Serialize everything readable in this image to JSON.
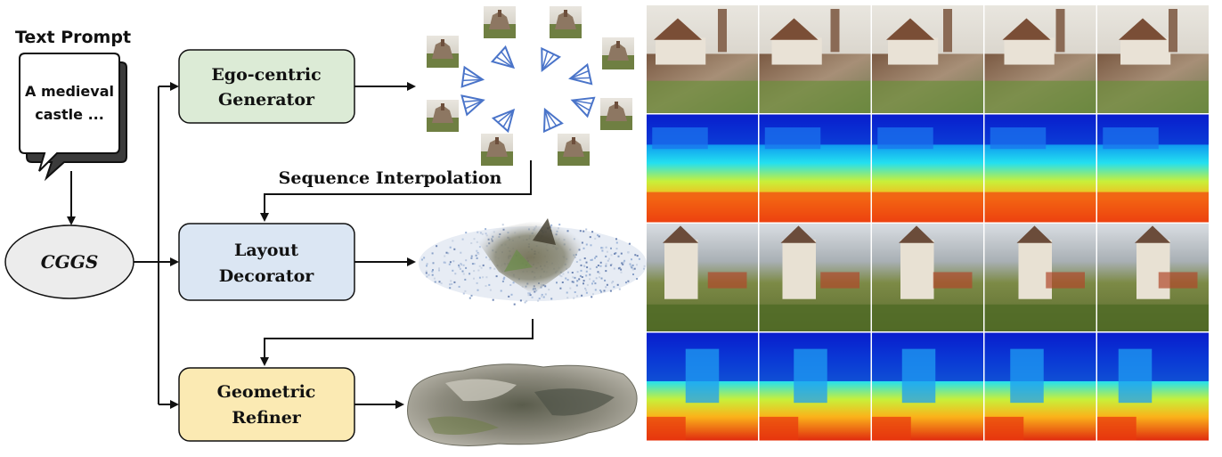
{
  "prompt": {
    "heading": "Text Prompt",
    "bubble_line1": "A medieval",
    "bubble_line2": "castle ..."
  },
  "cggs_label": "CGGS",
  "modules": {
    "ego": {
      "line1": "Ego-centric",
      "line2": "Generator",
      "color": "#dcebd6"
    },
    "layout": {
      "line1": "Layout",
      "line2": "Decorator",
      "color": "#dbe6f3"
    },
    "geo": {
      "line1": "Geometric",
      "line2": "Refiner",
      "color": "#fbeab3"
    }
  },
  "sequence_label": "Sequence Interpolation",
  "colors": {
    "arrow": "#111111",
    "camera": "#4a74c9",
    "cggs_fill": "#ececec"
  },
  "grid": {
    "rows": [
      {
        "kind": "rgb-castle",
        "count": 5
      },
      {
        "kind": "depth",
        "count": 5
      },
      {
        "kind": "rgb-landscape",
        "count": 5
      },
      {
        "kind": "depth",
        "count": 5
      }
    ]
  }
}
